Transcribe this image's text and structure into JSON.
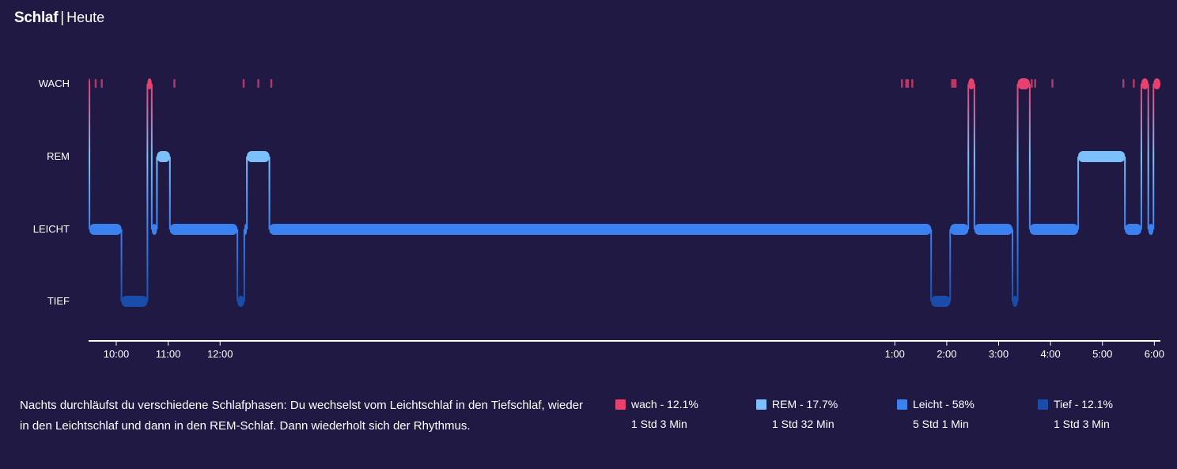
{
  "header": {
    "title": "Schlaf",
    "separator": "|",
    "subtitle": "Heute"
  },
  "colors": {
    "background": "#1f1944",
    "wach": "#e8416f",
    "rem": "#7cc0fb",
    "leicht": "#3b82f0",
    "tief": "#1a4dab"
  },
  "chart_data": {
    "type": "area",
    "x_unit": "time of day",
    "x_range": [
      "09:28",
      "06:07"
    ],
    "y_categories": [
      "WACH",
      "REM",
      "LEICHT",
      "TIEF"
    ],
    "x_ticks": [
      "10:00",
      "11:00",
      "12:00",
      "1:00",
      "2:00",
      "3:00",
      "4:00",
      "5:00",
      "6:00"
    ],
    "segments": [
      {
        "stage": "WACH",
        "start": "09:28",
        "end": "09:29"
      },
      {
        "stage": "LEICHT",
        "start": "09:29",
        "end": "10:06"
      },
      {
        "stage": "TIEF",
        "start": "10:06",
        "end": "10:36"
      },
      {
        "stage": "WACH",
        "start": "10:36",
        "end": "10:41"
      },
      {
        "stage": "LEICHT",
        "start": "10:41",
        "end": "10:47"
      },
      {
        "stage": "REM",
        "start": "10:47",
        "end": "11:02"
      },
      {
        "stage": "LEICHT",
        "start": "11:02",
        "end": "12:20"
      },
      {
        "stage": "TIEF",
        "start": "12:20",
        "end": "12:28"
      },
      {
        "stage": "LEICHT",
        "start": "12:28",
        "end": "12:31"
      },
      {
        "stage": "REM",
        "start": "12:31",
        "end": "12:57"
      },
      {
        "stage": "LEICHT",
        "start": "12:57",
        "end": "01:42"
      },
      {
        "stage": "TIEF",
        "start": "01:42",
        "end": "02:04"
      },
      {
        "stage": "LEICHT",
        "start": "02:04",
        "end": "02:25"
      },
      {
        "stage": "WACH",
        "start": "02:25",
        "end": "02:32"
      },
      {
        "stage": "LEICHT",
        "start": "02:32",
        "end": "03:16"
      },
      {
        "stage": "TIEF",
        "start": "03:16",
        "end": "03:22"
      },
      {
        "stage": "WACH",
        "start": "03:22",
        "end": "03:36"
      },
      {
        "stage": "LEICHT",
        "start": "03:36",
        "end": "04:32"
      },
      {
        "stage": "REM",
        "start": "04:32",
        "end": "05:26"
      },
      {
        "stage": "LEICHT",
        "start": "05:26",
        "end": "05:45"
      },
      {
        "stage": "WACH",
        "start": "05:45",
        "end": "05:53"
      },
      {
        "stage": "LEICHT",
        "start": "05:53",
        "end": "05:59"
      },
      {
        "stage": "WACH",
        "start": "05:59",
        "end": "06:07"
      }
    ],
    "brief_wake_events": [
      "09:36",
      "09:43",
      "11:07",
      "12:27",
      "12:44",
      "12:59",
      "01:08",
      "01:13",
      "01:15",
      "01:20",
      "02:06",
      "02:08",
      "02:10",
      "03:38",
      "03:42",
      "04:02",
      "05:24",
      "05:36"
    ]
  },
  "description": "Nachts durchläufst du verschiedene Schlafphasen: Du wechselst vom Leichtschlaf in den Tiefschlaf, wieder in den Leichtschlaf und dann in den REM-Schlaf. Dann wiederholt sich der Rhythmus.",
  "legend": [
    {
      "label": "wach - 12.1%",
      "duration": "1 Std 3 Min",
      "color": "#e8416f"
    },
    {
      "label": "REM - 17.7%",
      "duration": "1 Std 32 Min",
      "color": "#7cc0fb"
    },
    {
      "label": "Leicht - 58%",
      "duration": "5 Std 1 Min",
      "color": "#3b82f0"
    },
    {
      "label": "Tief - 12.1%",
      "duration": "1 Std 3 Min",
      "color": "#1a4dab"
    }
  ]
}
